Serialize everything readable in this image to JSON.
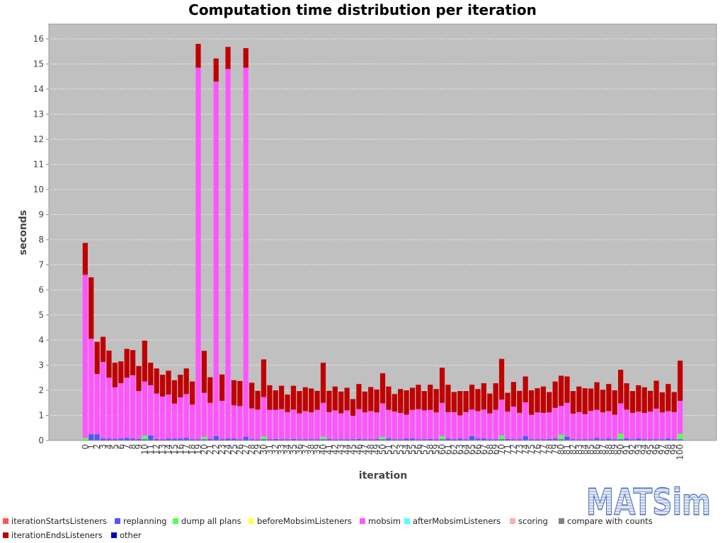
{
  "chart_data": {
    "type": "bar",
    "stacked": true,
    "title": "Computation time distribution per iteration",
    "xlabel": "iteration",
    "ylabel": "seconds",
    "ylim": [
      0,
      16.59
    ],
    "yticks": [
      0,
      1,
      2,
      3,
      4,
      5,
      6,
      7,
      8,
      9,
      10,
      11,
      12,
      13,
      14,
      15,
      16
    ],
    "grid": true,
    "legend_position": "bottom",
    "background": "#C0C0C0",
    "categories": [
      "0",
      "1",
      "2",
      "3",
      "4",
      "5",
      "6",
      "7",
      "8",
      "9",
      "10",
      "11",
      "12",
      "13",
      "14",
      "15",
      "16",
      "17",
      "18",
      "19",
      "20",
      "21",
      "22",
      "23",
      "24",
      "25",
      "26",
      "27",
      "28",
      "29",
      "30",
      "31",
      "32",
      "33",
      "34",
      "35",
      "36",
      "37",
      "38",
      "39",
      "40",
      "41",
      "42",
      "43",
      "44",
      "45",
      "46",
      "47",
      "48",
      "49",
      "50",
      "51",
      "52",
      "53",
      "54",
      "55",
      "56",
      "57",
      "58",
      "59",
      "60",
      "61",
      "62",
      "63",
      "64",
      "65",
      "66",
      "67",
      "68",
      "69",
      "70",
      "71",
      "72",
      "73",
      "74",
      "75",
      "76",
      "77",
      "78",
      "79",
      "80",
      "81",
      "82",
      "83",
      "84",
      "85",
      "86",
      "87",
      "88",
      "89",
      "90",
      "91",
      "92",
      "93",
      "94",
      "95",
      "96",
      "97",
      "98",
      "99",
      "100"
    ],
    "legend": [
      {
        "label": "iterationStartsListeners",
        "color": "#FF5555"
      },
      {
        "label": "replanning",
        "color": "#5555FF"
      },
      {
        "label": "dump all plans",
        "color": "#55FF55"
      },
      {
        "label": "beforeMobsimListeners",
        "color": "#FFFF55"
      },
      {
        "label": "mobsim",
        "color": "#FF55FF"
      },
      {
        "label": "afterMobsimListeners",
        "color": "#55FFFF"
      },
      {
        "label": "scoring",
        "color": "#FFAFAF"
      },
      {
        "label": "compare with counts",
        "color": "#808080"
      },
      {
        "label": "iterationEndsListeners",
        "color": "#C00000"
      },
      {
        "label": "other",
        "color": "#0000C0"
      }
    ],
    "series": [
      {
        "name": "replanning",
        "values": [
          0,
          0.25,
          0.25,
          0.08,
          0.07,
          0.06,
          0.08,
          0.1,
          0.08,
          0.06,
          0.05,
          0.2,
          0.06,
          0.05,
          0.08,
          0.07,
          0.08,
          0.1,
          0.05,
          0.05,
          0.05,
          0.06,
          0.18,
          0.05,
          0.08,
          0.08,
          0.05,
          0.15,
          0.05,
          0.04,
          0.05,
          0.05,
          0.06,
          0.05,
          0.05,
          0.06,
          0.05,
          0.05,
          0.05,
          0.05,
          0.05,
          0.06,
          0.04,
          0.05,
          0.05,
          0.05,
          0.06,
          0.05,
          0.05,
          0.06,
          0.05,
          0.08,
          0.05,
          0.05,
          0.08,
          0.08,
          0.05,
          0.05,
          0.06,
          0.05,
          0.05,
          0.08,
          0.05,
          0.08,
          0.05,
          0.17,
          0.08,
          0.08,
          0.05,
          0.05,
          0.05,
          0.06,
          0.05,
          0.05,
          0.18,
          0.05,
          0.05,
          0.05,
          0.06,
          0.08,
          0.05,
          0.15,
          0.05,
          0.05,
          0.05,
          0.05,
          0.1,
          0.05,
          0.08,
          0.05,
          0.05,
          0.08,
          0.05,
          0.08,
          0.05,
          0.05,
          0.05,
          0.05,
          0.08,
          0.05,
          0.05
        ]
      },
      {
        "name": "dump all plans",
        "values": [
          0.1,
          0,
          0,
          0,
          0,
          0,
          0,
          0,
          0,
          0,
          0.15,
          0,
          0,
          0,
          0,
          0,
          0,
          0,
          0,
          0,
          0.1,
          0,
          0,
          0,
          0,
          0,
          0,
          0,
          0,
          0,
          0.12,
          0,
          0,
          0,
          0,
          0,
          0,
          0,
          0,
          0,
          0.1,
          0,
          0,
          0,
          0,
          0,
          0,
          0,
          0,
          0,
          0.1,
          0,
          0,
          0,
          0,
          0,
          0,
          0,
          0,
          0,
          0.12,
          0,
          0,
          0,
          0,
          0,
          0,
          0,
          0,
          0,
          0.15,
          0,
          0,
          0,
          0,
          0,
          0,
          0,
          0,
          0,
          0.18,
          0,
          0,
          0,
          0,
          0,
          0,
          0,
          0,
          0,
          0.22,
          0,
          0,
          0,
          0,
          0,
          0,
          0,
          0,
          0,
          0.22
        ]
      },
      {
        "name": "mobsim",
        "values": [
          6.5,
          3.8,
          2.4,
          3.05,
          2.43,
          2.06,
          2.2,
          2.4,
          2.52,
          1.91,
          2.15,
          2.0,
          1.81,
          1.7,
          1.75,
          1.4,
          1.64,
          1.75,
          1.38,
          14.8,
          1.75,
          1.44,
          14.12,
          1.53,
          14.72,
          1.32,
          1.32,
          14.7,
          1.23,
          1.19,
          1.56,
          1.17,
          1.16,
          1.2,
          1.08,
          1.17,
          1.03,
          1.12,
          1.07,
          1.17,
          1.35,
          1.07,
          1.16,
          1.03,
          1.15,
          0.93,
          1.19,
          1.07,
          1.12,
          1.06,
          1.33,
          1.14,
          1.1,
          1.05,
          0.95,
          1.14,
          1.2,
          1.15,
          1.16,
          1.07,
          1.33,
          1.05,
          1.08,
          0.92,
          1.08,
          1.06,
          1.09,
          1.15,
          1.03,
          1.17,
          1.43,
          1.09,
          1.3,
          1.05,
          1.34,
          0.97,
          1.07,
          1.05,
          1.06,
          1.22,
          1.15,
          1.35,
          1.02,
          1.08,
          1.0,
          1.13,
          1.12,
          1.07,
          1.09,
          0.98,
          1.21,
          1.15,
          1.05,
          1.07,
          1.05,
          1.1,
          1.22,
          1.07,
          1.09,
          1.08,
          1.31
        ]
      },
      {
        "name": "iterationEndsListeners",
        "values": [
          1.27,
          2.45,
          1.28,
          1.0,
          1.08,
          0.98,
          0.87,
          1.15,
          1.0,
          1.0,
          1.63,
          0.9,
          1.0,
          0.87,
          0.95,
          0.93,
          0.9,
          1.02,
          0.92,
          0.95,
          1.67,
          1.02,
          0.92,
          1.05,
          0.88,
          1.0,
          1.0,
          0.78,
          1.02,
          0.75,
          1.5,
          0.98,
          0.78,
          0.93,
          0.7,
          0.95,
          0.89,
          0.95,
          0.95,
          0.76,
          1.6,
          0.85,
          0.95,
          0.87,
          0.9,
          0.67,
          1.0,
          0.83,
          0.96,
          0.91,
          1.2,
          0.93,
          0.7,
          0.95,
          0.97,
          0.88,
          0.97,
          0.77,
          1.0,
          0.93,
          1.4,
          1.09,
          0.8,
          0.97,
          0.84,
          0.99,
          0.88,
          1.05,
          0.79,
          1.06,
          1.62,
          0.75,
          0.98,
          0.88,
          1.03,
          0.98,
          0.96,
          1.05,
          0.81,
          1.05,
          1.2,
          1.05,
          0.9,
          1.02,
          1.03,
          0.89,
          1.1,
          0.9,
          1.08,
          0.97,
          1.34,
          1.05,
          0.87,
          1.05,
          1.02,
          0.83,
          1.11,
          0.8,
          1.08,
          0.8,
          1.6
        ]
      }
    ]
  },
  "logo": {
    "text": "MATSim",
    "color": "#4F6FB3"
  }
}
